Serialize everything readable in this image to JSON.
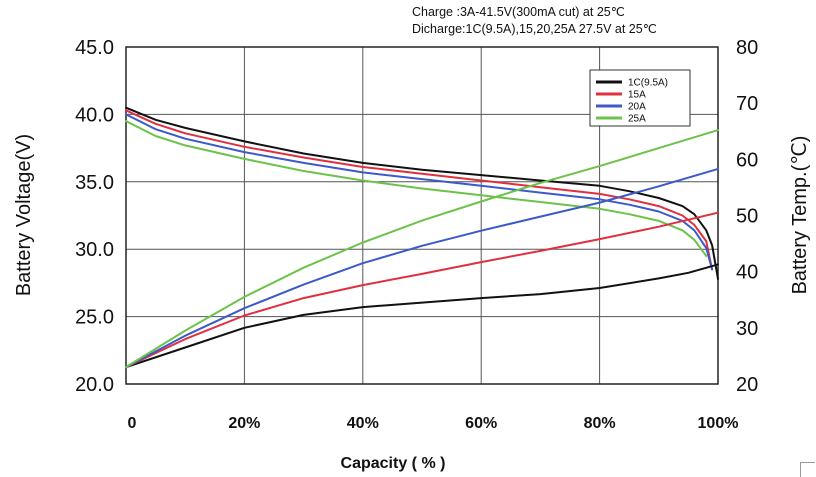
{
  "chart_data": {
    "type": "line",
    "title": "",
    "annotations": [
      "Charge :3A-41.5V(300mA cut) at 25℃",
      "Dicharge:1C(9.5A),15,20,25A 27.5V at 25℃"
    ],
    "xlabel": "Capacity ( % )",
    "ylabel": "Battery Voltage(V)",
    "y2label": "Battery Temp.(℃)",
    "xlim": [
      0,
      100
    ],
    "ylim": [
      20,
      45
    ],
    "y2lim": [
      20,
      80
    ],
    "x_ticks": [
      0,
      20,
      40,
      60,
      80,
      100
    ],
    "x_tick_labels": [
      "0",
      "20%",
      "40%",
      "60%",
      "80%",
      "100%"
    ],
    "y_ticks": [
      20,
      25,
      30,
      35,
      40,
      45
    ],
    "y_tick_labels": [
      "20.0",
      "25.0",
      "30.0",
      "35.0",
      "40.0",
      "45.0"
    ],
    "y2_ticks": [
      20,
      30,
      40,
      50,
      60,
      70,
      80
    ],
    "y2_tick_labels": [
      "20",
      "30",
      "40",
      "50",
      "60",
      "70",
      "80"
    ],
    "grid": true,
    "legend_position": "top-right",
    "series": [
      {
        "name": "1C(9.5A)",
        "color": "#111111",
        "axis": "left",
        "kind": "voltage",
        "x": [
          0,
          5,
          10,
          20,
          30,
          40,
          50,
          60,
          70,
          80,
          85,
          90,
          94,
          96,
          98,
          99,
          100
        ],
        "y": [
          40.5,
          39.6,
          39.0,
          38.0,
          37.1,
          36.4,
          35.9,
          35.5,
          35.1,
          34.7,
          34.3,
          33.8,
          33.2,
          32.6,
          31.4,
          30.3,
          27.8
        ]
      },
      {
        "name": "15A",
        "color": "#e03040",
        "axis": "left",
        "kind": "voltage",
        "x": [
          0,
          5,
          10,
          20,
          30,
          40,
          50,
          60,
          70,
          80,
          85,
          90,
          94,
          96,
          98,
          99
        ],
        "y": [
          40.3,
          39.3,
          38.6,
          37.6,
          36.8,
          36.1,
          35.6,
          35.1,
          34.6,
          34.1,
          33.7,
          33.2,
          32.5,
          31.8,
          30.6,
          28.5
        ]
      },
      {
        "name": "20A",
        "color": "#3c5ac8",
        "axis": "left",
        "kind": "voltage",
        "x": [
          0,
          5,
          10,
          20,
          30,
          40,
          50,
          60,
          70,
          80,
          85,
          90,
          94,
          96,
          98,
          99
        ],
        "y": [
          40.0,
          38.9,
          38.2,
          37.2,
          36.4,
          35.7,
          35.2,
          34.7,
          34.2,
          33.7,
          33.3,
          32.8,
          32.1,
          31.4,
          30.1,
          28.5
        ]
      },
      {
        "name": "25A",
        "color": "#6cc24a",
        "axis": "left",
        "kind": "voltage",
        "x": [
          0,
          5,
          10,
          20,
          30,
          40,
          50,
          60,
          70,
          80,
          85,
          90,
          94,
          96,
          98
        ],
        "y": [
          39.5,
          38.4,
          37.7,
          36.7,
          35.8,
          35.1,
          34.5,
          34.0,
          33.5,
          33.0,
          32.6,
          32.1,
          31.4,
          30.7,
          29.5
        ]
      },
      {
        "name": "1C(9.5A)",
        "color": "#111111",
        "axis": "right",
        "kind": "temperature",
        "x": [
          0,
          10,
          20,
          30,
          40,
          50,
          60,
          70,
          80,
          90,
          95,
          100
        ],
        "y": [
          23,
          26.5,
          30,
          32.3,
          33.7,
          34.5,
          35.3,
          36.0,
          37.1,
          38.8,
          39.8,
          41.3
        ]
      },
      {
        "name": "15A",
        "color": "#e03040",
        "axis": "right",
        "kind": "temperature",
        "x": [
          0,
          10,
          20,
          30,
          40,
          50,
          60,
          70,
          80,
          90,
          100
        ],
        "y": [
          23,
          28,
          32.2,
          35.3,
          37.6,
          39.6,
          41.7,
          43.7,
          45.8,
          48.0,
          50.5
        ]
      },
      {
        "name": "20A",
        "color": "#3c5ac8",
        "axis": "right",
        "kind": "temperature",
        "x": [
          0,
          10,
          20,
          30,
          40,
          50,
          60,
          70,
          80,
          90,
          100
        ],
        "y": [
          23,
          28.6,
          33.5,
          37.7,
          41.5,
          44.6,
          47.3,
          49.8,
          52.3,
          55.2,
          58.3
        ]
      },
      {
        "name": "25A",
        "color": "#6cc24a",
        "axis": "right",
        "kind": "temperature",
        "x": [
          0,
          10,
          20,
          30,
          40,
          50,
          60,
          70,
          80,
          90,
          100
        ],
        "y": [
          23,
          29.5,
          35.5,
          40.7,
          45.2,
          49.1,
          52.5,
          55.8,
          58.8,
          62.0,
          65.2
        ]
      }
    ]
  }
}
